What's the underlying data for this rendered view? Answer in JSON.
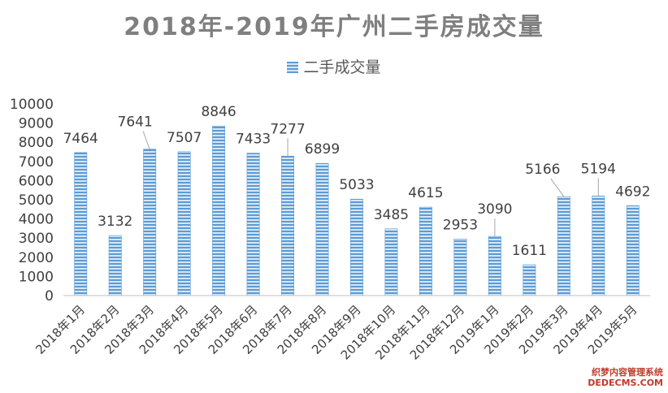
{
  "chart_data": {
    "type": "bar",
    "title": "2018年-2019年广州二手房成交量",
    "categories": [
      "2018年1月",
      "2018年2月",
      "2018年3月",
      "2018年4月",
      "2018年5月",
      "2018年6月",
      "2018年7月",
      "2018年8月",
      "2018年9月",
      "2018年10月",
      "2018年11月",
      "2018年12月",
      "2019年1月",
      "2019年2月",
      "2019年3月",
      "2019年4月",
      "2019年5月"
    ],
    "series": [
      {
        "name": "二手成交量",
        "values": [
          7464,
          3132,
          7641,
          7507,
          8846,
          7433,
          7277,
          6899,
          5033,
          3485,
          4615,
          2953,
          3090,
          1611,
          5166,
          5194,
          4692
        ]
      }
    ],
    "ylim": [
      0,
      10000
    ],
    "yticks": [
      0,
      1000,
      2000,
      3000,
      4000,
      5000,
      6000,
      7000,
      8000,
      9000,
      10000
    ],
    "grid": false,
    "legend": "top",
    "colors": {
      "bar": "#5b9bd5",
      "bar_stripe": "#d6e6f5",
      "text": "#404040",
      "title": "#7f7f7f"
    }
  },
  "watermark": {
    "line1": "织梦内容管理系统",
    "line2": "DEDECMS.COM"
  }
}
